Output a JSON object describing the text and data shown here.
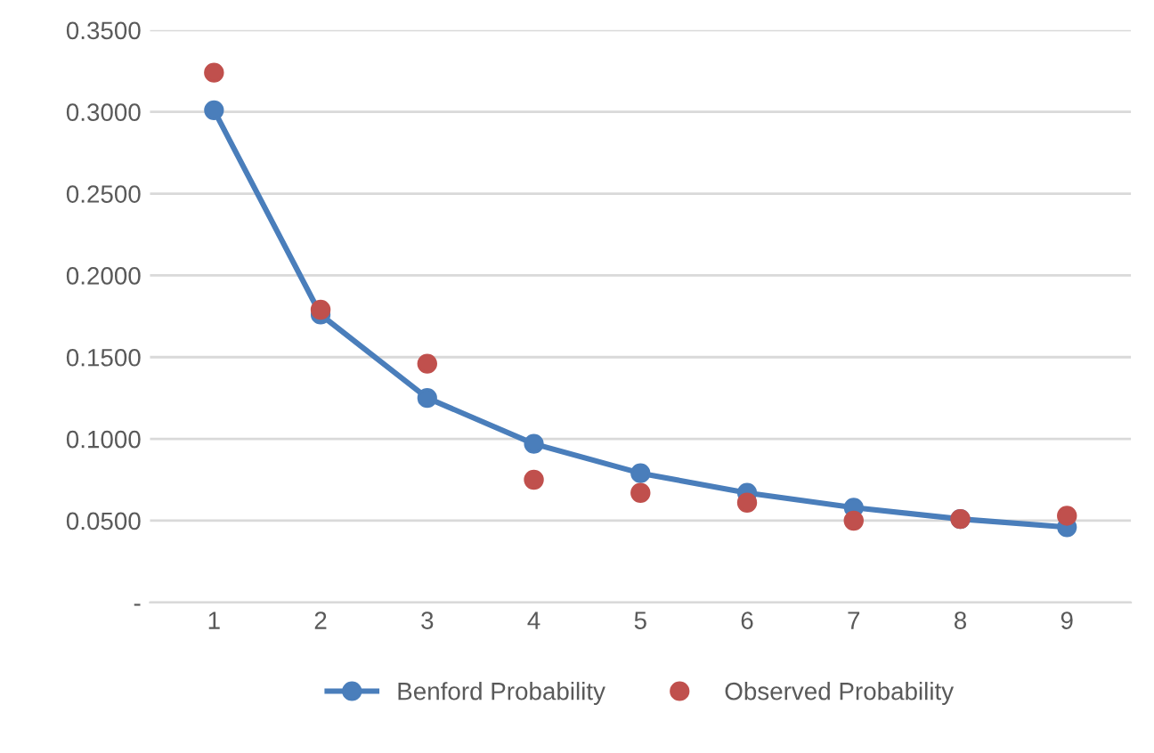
{
  "chart_data": {
    "type": "line",
    "categories": [
      "1",
      "2",
      "3",
      "4",
      "5",
      "6",
      "7",
      "8",
      "9"
    ],
    "series": [
      {
        "name": "Benford Probability",
        "color": "#4a7ebb",
        "marker": "circle",
        "values": [
          0.301,
          0.176,
          0.125,
          0.097,
          0.079,
          0.067,
          0.058,
          0.051,
          0.046
        ]
      },
      {
        "name": "Observed Probability",
        "type": "scatter",
        "color": "#c0504d",
        "marker": "circle",
        "values": [
          0.324,
          0.179,
          0.146,
          0.075,
          0.067,
          0.061,
          0.05,
          0.051,
          0.053
        ]
      }
    ],
    "ylim": [
      0,
      0.35
    ],
    "yticks": [
      {
        "value": 0,
        "label": "-"
      },
      {
        "value": 0.05,
        "label": "0.0500"
      },
      {
        "value": 0.1,
        "label": "0.1000"
      },
      {
        "value": 0.15,
        "label": "0.1500"
      },
      {
        "value": 0.2,
        "label": "0.2000"
      },
      {
        "value": 0.25,
        "label": "0.2500"
      },
      {
        "value": 0.3,
        "label": "0.3000"
      },
      {
        "value": 0.35,
        "label": "0.3500"
      }
    ],
    "grid": "y",
    "legend": "bottom"
  }
}
